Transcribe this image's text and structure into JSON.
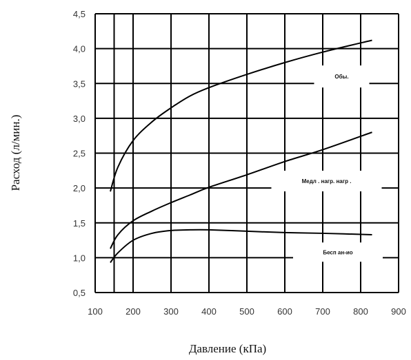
{
  "chart_data": {
    "type": "line",
    "xlabel": "Давление (кПа)",
    "ylabel": "Расход (л/мин.)",
    "xlim": [
      100,
      900
    ],
    "ylim": [
      0.5,
      4.5
    ],
    "x_ticks": [
      "100",
      "200",
      "300",
      "400",
      "500",
      "600",
      "700",
      "800",
      "900"
    ],
    "y_ticks": [
      "0,5",
      "1,0",
      "1,5",
      "2,0",
      "2,5",
      "3,0",
      "3,5",
      "4,0",
      "4,5"
    ],
    "grid": true,
    "series": [
      {
        "x": [
          140,
          160,
          200,
          250,
          300,
          350,
          400,
          500,
          600,
          700,
          830
        ],
        "y": [
          1.95,
          2.3,
          2.68,
          2.95,
          3.15,
          3.32,
          3.44,
          3.63,
          3.8,
          3.95,
          4.12
        ]
      },
      {
        "x": [
          140,
          160,
          200,
          250,
          300,
          350,
          400,
          500,
          600,
          700,
          830
        ],
        "y": [
          1.13,
          1.33,
          1.53,
          1.67,
          1.79,
          1.9,
          2.01,
          2.19,
          2.38,
          2.55,
          2.8
        ]
      },
      {
        "x": [
          140,
          160,
          200,
          250,
          300,
          350,
          400,
          500,
          600,
          700,
          830
        ],
        "y": [
          0.93,
          1.07,
          1.25,
          1.35,
          1.39,
          1.4,
          1.4,
          1.38,
          1.36,
          1.35,
          1.33
        ]
      }
    ],
    "annotations": [
      {
        "text": "Обы.",
        "x": 750,
        "y": 3.6
      },
      {
        "text": "Медл . нагр. нагр .",
        "x": 710,
        "y": 2.1
      },
      {
        "text": "Бесп ан-ио",
        "x": 740,
        "y": 1.08
      }
    ]
  }
}
